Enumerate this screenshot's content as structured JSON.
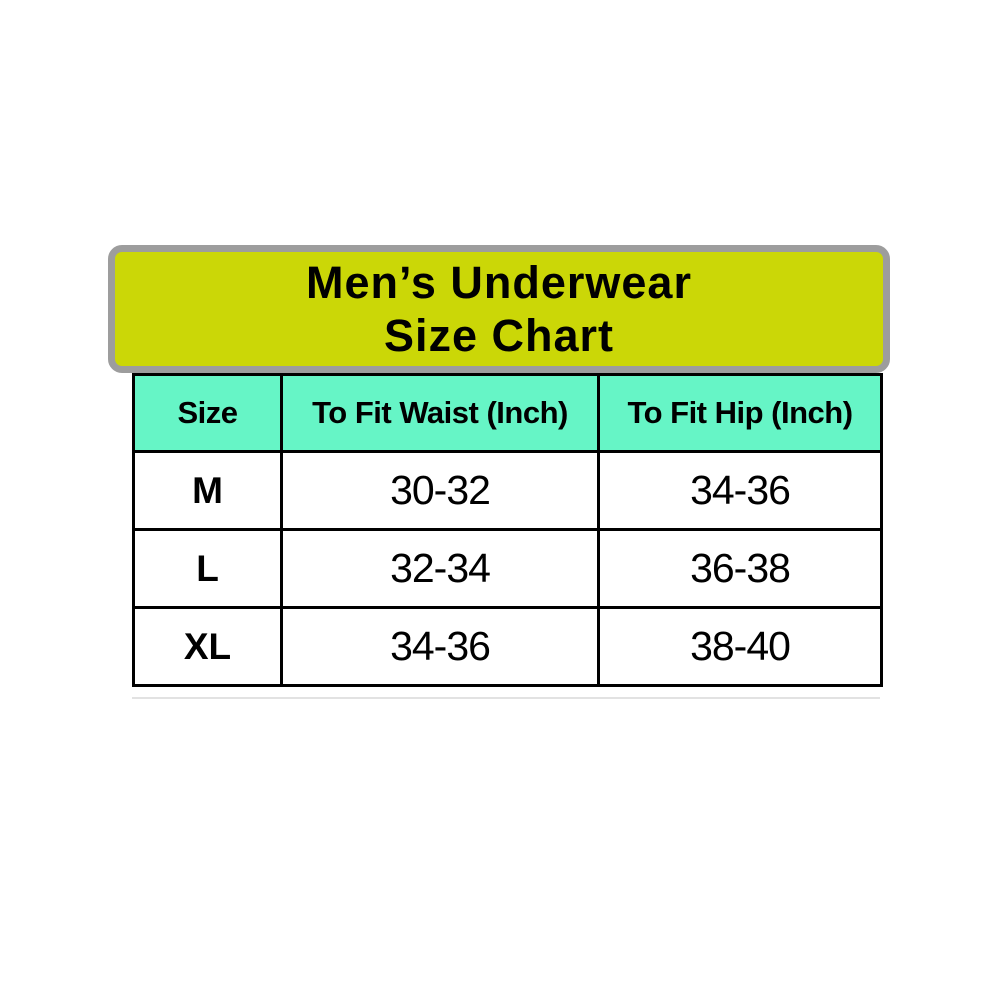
{
  "banner": {
    "line1": "Men’s Underwear",
    "line2": "Size Chart"
  },
  "chart_data": {
    "type": "table",
    "title": "Men’s Underwear Size Chart",
    "columns": [
      "Size",
      "To Fit Waist (Inch)",
      "To Fit Hip (Inch)"
    ],
    "rows": [
      [
        "M",
        "30-32",
        "34-36"
      ],
      [
        "L",
        "32-34",
        "36-38"
      ],
      [
        "XL",
        "34-36",
        "38-40"
      ]
    ]
  },
  "colors": {
    "banner_background": "#cbd707",
    "banner_border": "#9d9d9d",
    "header_background": "#66f5c6",
    "table_border": "#000000",
    "page_background": "#ffffff",
    "text": "#000000"
  }
}
